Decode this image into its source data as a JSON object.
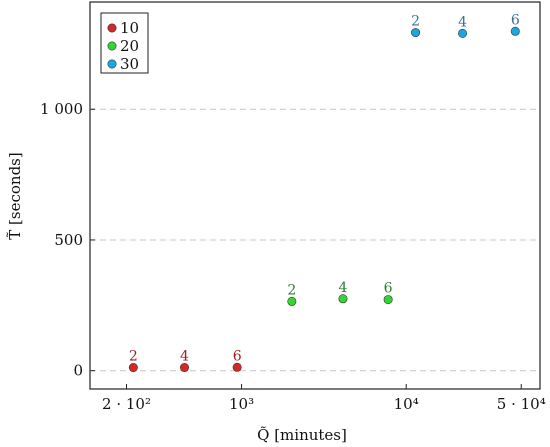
{
  "chart_data": {
    "type": "scatter",
    "xscale": "log",
    "xlim": [
      120,
      65000
    ],
    "ylim": [
      -70,
      1410
    ],
    "xlabel": "Q̃ [minutes]",
    "ylabel": "T̃ [seconds]",
    "xticks": [
      {
        "value": 200,
        "label": "2 · 10²"
      },
      {
        "value": 1000,
        "label": "10³"
      },
      {
        "value": 10000,
        "label": "10⁴"
      },
      {
        "value": 50000,
        "label": "5 · 10⁴"
      }
    ],
    "yticks": [
      {
        "value": 0,
        "label": "0"
      },
      {
        "value": 500,
        "label": "500"
      },
      {
        "value": 1000,
        "label": "1 000"
      }
    ],
    "grid": "horizontal dashed",
    "legend_position": "top-left",
    "series": [
      {
        "name": "10",
        "color": "#d62728",
        "label_color": "#9b1e24",
        "points": [
          {
            "x": 220,
            "y": 12,
            "label": "2"
          },
          {
            "x": 450,
            "y": 12,
            "label": "4"
          },
          {
            "x": 940,
            "y": 13,
            "label": "6"
          }
        ]
      },
      {
        "name": "20",
        "color": "#32d632",
        "label_color": "#2e7d32",
        "points": [
          {
            "x": 2020,
            "y": 265,
            "label": "2"
          },
          {
            "x": 4130,
            "y": 275,
            "label": "4"
          },
          {
            "x": 7770,
            "y": 272,
            "label": "6"
          }
        ]
      },
      {
        "name": "30",
        "color": "#1ba8e0",
        "label_color": "#3b6e91",
        "points": [
          {
            "x": 11400,
            "y": 1293,
            "label": "2"
          },
          {
            "x": 22000,
            "y": 1290,
            "label": "4"
          },
          {
            "x": 46000,
            "y": 1298,
            "label": "6"
          }
        ]
      }
    ]
  }
}
